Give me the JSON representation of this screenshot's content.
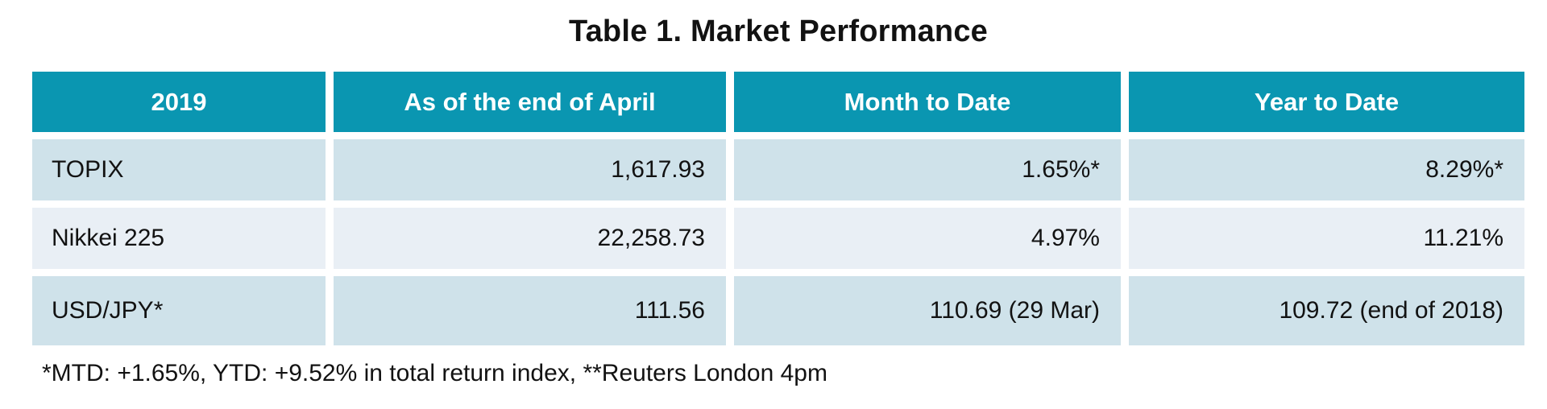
{
  "title": "Table 1. Market Performance",
  "table": {
    "columns": [
      "2019",
      "As of the end of April",
      "Month to Date",
      "Year to Date"
    ],
    "rows": [
      {
        "label": "TOPIX",
        "values": [
          "1,617.93",
          "1.65%*",
          "8.29%*"
        ]
      },
      {
        "label": "Nikkei 225",
        "values": [
          "22,258.73",
          "4.97%",
          "11.21%"
        ]
      },
      {
        "label": "USD/JPY*",
        "values": [
          "111.56",
          "110.69 (29 Mar)",
          "109.72 (end of 2018)"
        ]
      }
    ]
  },
  "footnote": "*MTD: +1.65%, YTD: +9.52% in total return index, **Reuters London 4pm",
  "colors": {
    "header_bg": "#0a96b1",
    "header_text": "#ffffff",
    "row_odd_bg": "#cfe2ea",
    "row_even_bg": "#e9eff5",
    "text": "#121212"
  }
}
